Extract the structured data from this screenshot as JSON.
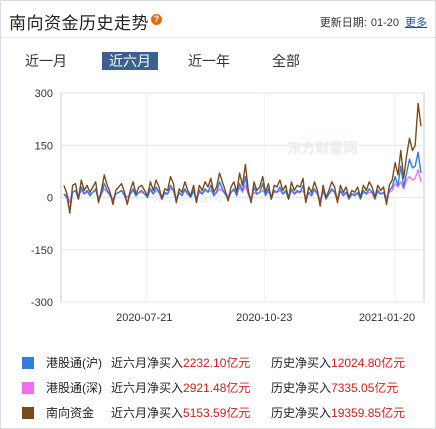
{
  "header": {
    "title": "南向资金历史走势",
    "help_icon": "?",
    "update_label": "更新日期:",
    "update_date": "01-20",
    "more_label": "更多"
  },
  "tabs": [
    {
      "label": "近一月",
      "active": false
    },
    {
      "label": "近六月",
      "active": true
    },
    {
      "label": "近一年",
      "active": false
    },
    {
      "label": "全部",
      "active": false
    }
  ],
  "watermark": "东方财富网",
  "chart_data": {
    "type": "line",
    "ylim": [
      -300,
      300
    ],
    "yticks": [
      300,
      150,
      0,
      -150,
      -300
    ],
    "xtick_labels": [
      "2020-07-21",
      "2020-10-23",
      "2021-01-20"
    ],
    "grid": true,
    "series": [
      {
        "name": "港股通(沪)",
        "color": "#2f7ee0",
        "values": [
          10,
          0,
          -40,
          15,
          20,
          -5,
          30,
          10,
          20,
          5,
          15,
          25,
          -10,
          10,
          40,
          20,
          5,
          -10,
          10,
          15,
          20,
          5,
          -15,
          10,
          25,
          5,
          15,
          20,
          10,
          0,
          25,
          10,
          30,
          15,
          -5,
          15,
          10,
          35,
          20,
          -10,
          15,
          5,
          25,
          10,
          0,
          20,
          -10,
          20,
          10,
          25,
          15,
          35,
          5,
          15,
          45,
          25,
          10,
          -5,
          15,
          25,
          5,
          40,
          20,
          60,
          10,
          -10,
          30,
          10,
          15,
          40,
          5,
          25,
          -5,
          20,
          15,
          30,
          10,
          20,
          -5,
          25,
          10,
          20,
          15,
          35,
          -10,
          15,
          5,
          25,
          10,
          -15,
          20,
          -5,
          10,
          25,
          15,
          -10,
          20,
          5,
          15,
          -5,
          10,
          5,
          15,
          -5,
          20,
          10,
          25,
          15,
          -5,
          20,
          10,
          15,
          -15,
          20,
          30,
          60,
          35,
          90,
          30,
          70,
          110,
          85,
          90,
          130,
          70
        ]
      },
      {
        "name": "港股通(深)",
        "color": "#f070f0",
        "values": [
          5,
          10,
          -15,
          15,
          20,
          5,
          20,
          10,
          15,
          10,
          15,
          20,
          0,
          10,
          25,
          15,
          10,
          -5,
          10,
          15,
          20,
          10,
          0,
          10,
          20,
          5,
          15,
          15,
          10,
          5,
          20,
          10,
          20,
          15,
          5,
          10,
          10,
          25,
          20,
          0,
          10,
          10,
          20,
          10,
          5,
          15,
          0,
          15,
          10,
          20,
          15,
          20,
          10,
          15,
          25,
          20,
          10,
          5,
          15,
          20,
          10,
          30,
          15,
          35,
          10,
          0,
          15,
          10,
          15,
          20,
          10,
          15,
          5,
          15,
          15,
          20,
          10,
          15,
          0,
          20,
          10,
          15,
          15,
          20,
          0,
          15,
          10,
          20,
          10,
          -5,
          15,
          5,
          10,
          20,
          15,
          0,
          15,
          10,
          15,
          5,
          10,
          10,
          10,
          5,
          15,
          10,
          15,
          15,
          5,
          15,
          10,
          15,
          0,
          15,
          20,
          40,
          30,
          45,
          25,
          50,
          60,
          50,
          55,
          80,
          45
        ]
      },
      {
        "name": "南向资金",
        "color": "#7a4a1e",
        "values": [
          35,
          10,
          -45,
          35,
          40,
          -5,
          50,
          20,
          35,
          15,
          30,
          45,
          -15,
          20,
          65,
          35,
          15,
          -20,
          20,
          30,
          40,
          15,
          -20,
          20,
          45,
          10,
          30,
          35,
          20,
          5,
          45,
          20,
          50,
          30,
          -5,
          25,
          20,
          60,
          40,
          -15,
          25,
          15,
          45,
          20,
          5,
          35,
          -15,
          35,
          20,
          45,
          30,
          55,
          15,
          30,
          70,
          45,
          20,
          -10,
          30,
          45,
          15,
          70,
          35,
          95,
          20,
          -15,
          45,
          20,
          30,
          60,
          15,
          40,
          -5,
          35,
          30,
          50,
          20,
          35,
          -5,
          45,
          20,
          35,
          30,
          55,
          -15,
          30,
          15,
          45,
          20,
          -25,
          35,
          0,
          20,
          45,
          30,
          -15,
          35,
          15,
          30,
          0,
          20,
          15,
          30,
          0,
          35,
          20,
          45,
          30,
          0,
          35,
          20,
          30,
          -20,
          35,
          50,
          100,
          65,
          135,
          55,
          120,
          170,
          135,
          150,
          270,
          205
        ]
      }
    ]
  },
  "legend": [
    {
      "name": "港股通(沪)",
      "color": "#2f7ee0",
      "six_label": "近六月净买入",
      "six_value": "2232.10",
      "hist_label": "历史净买入",
      "hist_value": "12024.80",
      "unit": "亿元"
    },
    {
      "name": "港股通(深)",
      "color": "#f070f0",
      "six_label": "近六月净买入",
      "six_value": "2921.48",
      "hist_label": "历史净买入",
      "hist_value": "7335.05",
      "unit": "亿元"
    },
    {
      "name": "南向资金",
      "color": "#7a4a1e",
      "six_label": "近六月净买入",
      "six_value": "5153.59",
      "hist_label": "历史净买入",
      "hist_value": "19359.85",
      "unit": "亿元"
    }
  ]
}
